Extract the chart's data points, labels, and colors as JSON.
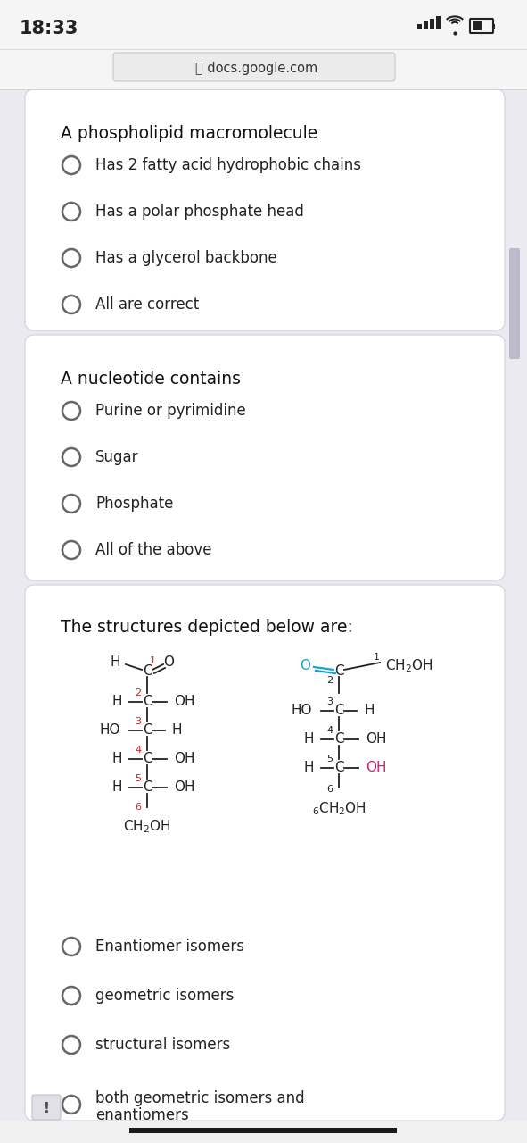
{
  "bg_color": "#eaeaf0",
  "card_bg": "#ffffff",
  "status_bg": "#f5f5f5",
  "time_text": "18:33",
  "url_text": "docs.google.com",
  "q1_title": "A phospholipid macromolecule",
  "q1_options": [
    "Has 2 fatty acid hydrophobic chains",
    "Has a polar phosphate head",
    "Has a glycerol backbone",
    "All are correct"
  ],
  "q2_title": "A nucleotide contains",
  "q2_options": [
    "Purine or pyrimidine",
    "Sugar",
    "Phosphate",
    "All of the above"
  ],
  "q3_title": "The structures depicted below are:",
  "q3_options": [
    "Enantiomer isomers",
    "geometric isomers",
    "structural isomers",
    "both geometric isomers and\nenantiomers"
  ],
  "radio_color": "#666666",
  "text_color": "#222222",
  "title_color": "#111111",
  "red_color": "#cc2222",
  "blue_color": "#1fa0cc",
  "pink_color": "#cc2277",
  "card_border": "#d0d0d8",
  "scrollbar_color": "#bbbbcc"
}
